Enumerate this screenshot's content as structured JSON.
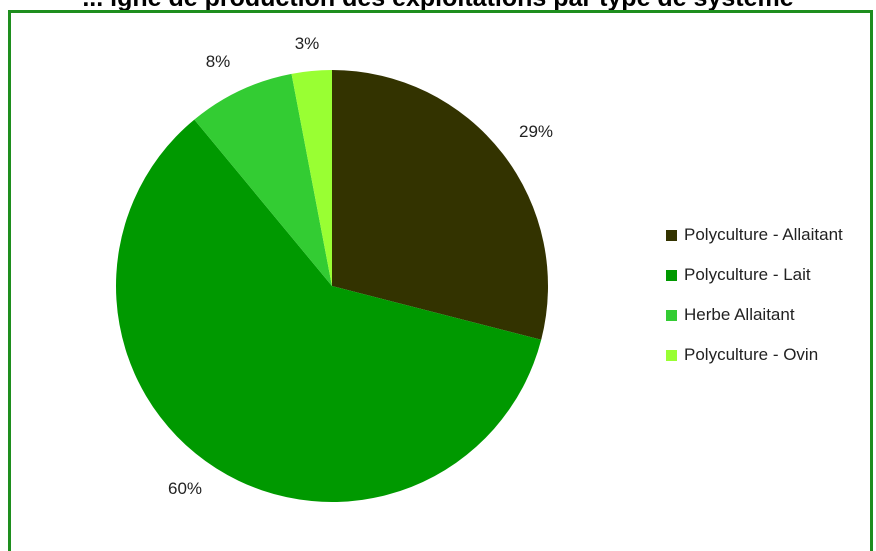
{
  "chart_data": {
    "type": "pie",
    "title": "... igne de production des exploitations par type de système",
    "categories": [
      "Polyculture - Allaitant",
      "Polyculture - Lait",
      "Herbe Allaitant",
      "Polyculture - Ovin"
    ],
    "values": [
      29,
      60,
      8,
      3
    ],
    "labels": [
      "29%",
      "60%",
      "8%",
      "3%"
    ],
    "colors": [
      "#333300",
      "#009900",
      "#33cc33",
      "#99ff33"
    ],
    "legend_position": "right",
    "start_angle": "12-o'clock",
    "direction": "clockwise"
  },
  "frame": {
    "border_color": "#1e8e1e"
  }
}
